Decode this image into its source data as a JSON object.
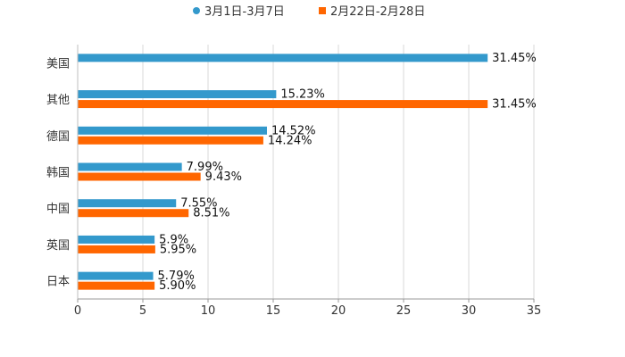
{
  "chart_data": {
    "type": "bar",
    "orientation": "horizontal",
    "categories": [
      "美国",
      "其他",
      "德国",
      "韩国",
      "中国",
      "英国",
      "日本"
    ],
    "series": [
      {
        "name": "3月1日-3月7日",
        "color": "#3399cc",
        "values": [
          31.45,
          15.23,
          14.52,
          7.99,
          7.55,
          5.9,
          5.79
        ],
        "labels": [
          "31.45%",
          "15.23%",
          "14.52%",
          "7.99%",
          "7.55%",
          "5.9%",
          "5.79%"
        ]
      },
      {
        "name": "2月22日-2月28日",
        "color": "#ff6600",
        "values": [
          null,
          31.45,
          14.24,
          9.43,
          8.51,
          5.95,
          5.9
        ],
        "labels": [
          "",
          "31.45%",
          "14.24%",
          "9.43%",
          "8.51%",
          "5.95%",
          "5.90%"
        ]
      }
    ],
    "xlim": [
      0,
      35
    ],
    "xticks": [
      "0",
      "5",
      "10",
      "15",
      "20",
      "25",
      "30",
      "35"
    ],
    "xtick_values": [
      0,
      5,
      10,
      15,
      20,
      25,
      30,
      35
    ],
    "grid": true,
    "legend_position": "top-center",
    "title": "",
    "xlabel": "",
    "ylabel": ""
  }
}
